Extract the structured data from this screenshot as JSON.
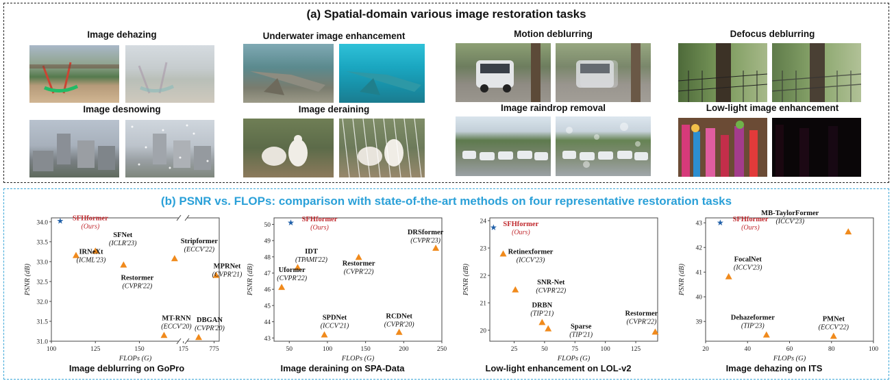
{
  "panel_a": {
    "title": "(a) Spatial-domain various image restoration tasks",
    "tasks": [
      {
        "label": "Image dehazing"
      },
      {
        "label": "Underwater image enhancement"
      },
      {
        "label": "Motion deblurring"
      },
      {
        "label": "Defocus deblurring"
      },
      {
        "label": "Image desnowing"
      },
      {
        "label": "Image deraining"
      },
      {
        "label": "Image raindrop removal"
      },
      {
        "label": "Low-light image enhancement"
      }
    ]
  },
  "panel_b": {
    "title": "(b) PSNR vs. FLOPs: comparison with state-of-the-art methods on four representative restoration tasks"
  },
  "colors": {
    "ours_star": "#1f5fa8",
    "ours_text": "#c0282d",
    "marker": "#f08a1c",
    "panel_b_border": "#3aa6d8"
  },
  "chart_data": [
    {
      "type": "scatter",
      "caption": "Image deblurring on GoPro",
      "xlabel": "FLOPs (G)",
      "ylabel": "PSNR (dB)",
      "broken_x_axis": true,
      "xticks_left": [
        "100",
        "125",
        "150",
        "175"
      ],
      "xticks_right": [
        "775"
      ],
      "yticks": [
        "31.0",
        "31.5",
        "32.0",
        "32.5",
        "33.0",
        "33.5",
        "34.0"
      ],
      "ylim": [
        31.0,
        34.1
      ],
      "points": [
        {
          "name": "SFHformer",
          "venue": "(Ours)",
          "x": 105,
          "y": 34.02,
          "ours": true
        },
        {
          "name": "SFNet",
          "venue": "(ICLR'23)",
          "x": 125,
          "y": 33.27
        },
        {
          "name": "IRNeXt",
          "venue": "(ICML'23)",
          "x": 114,
          "y": 33.16
        },
        {
          "name": "Restormer",
          "venue": "(CVPR'22)",
          "x": 141,
          "y": 32.92
        },
        {
          "name": "Stripformer",
          "venue": "(ECCV'22)",
          "x": 170,
          "y": 33.08
        },
        {
          "name": "MPRNet",
          "venue": "(CVPR'21)",
          "x": 777,
          "y": 32.66
        },
        {
          "name": "MT-RNN",
          "venue": "(ECCV'20)",
          "x": 164,
          "y": 31.15
        },
        {
          "name": "DBGAN",
          "venue": "(CVPR'20)",
          "x": 760,
          "y": 31.1
        }
      ]
    },
    {
      "type": "scatter",
      "caption": "Image deraining on SPA-Data",
      "xlabel": "FLOPs (G)",
      "ylabel": "PSNR (dB)",
      "xticks": [
        "50",
        "100",
        "150",
        "200",
        "250"
      ],
      "yticks": [
        "43",
        "44",
        "45",
        "46",
        "47",
        "48",
        "49",
        "50"
      ],
      "xlim": [
        30,
        250
      ],
      "ylim": [
        42.8,
        50.4
      ],
      "points": [
        {
          "name": "SFHformer",
          "venue": "(Ours)",
          "x": 52,
          "y": 50.1,
          "ours": true
        },
        {
          "name": "DRSformer",
          "venue": "(CVPR'23)",
          "x": 242,
          "y": 48.54
        },
        {
          "name": "IDT",
          "venue": "(TPAMI'22)",
          "x": 61,
          "y": 47.35
        },
        {
          "name": "Restormer",
          "venue": "(CVPR'22)",
          "x": 141,
          "y": 47.98
        },
        {
          "name": "Uformer",
          "venue": "(CVPR'22)",
          "x": 40,
          "y": 46.13
        },
        {
          "name": "SPDNet",
          "venue": "(ICCV'21)",
          "x": 96,
          "y": 43.2
        },
        {
          "name": "RCDNet",
          "venue": "(CVPR'20)",
          "x": 194,
          "y": 43.36
        }
      ]
    },
    {
      "type": "scatter",
      "caption": "Low-light enhancement on LOL-v2",
      "xlabel": "FLOPs (G)",
      "ylabel": "PSNR (dB)",
      "xticks": [
        "25",
        "50",
        "75",
        "100",
        "125"
      ],
      "yticks": [
        "20",
        "21",
        "22",
        "23",
        "24"
      ],
      "xlim": [
        5,
        143
      ],
      "ylim": [
        19.6,
        24.1
      ],
      "points": [
        {
          "name": "SFHformer",
          "venue": "(Ours)",
          "x": 8,
          "y": 23.75,
          "ours": true
        },
        {
          "name": "Retinexformer",
          "venue": "(ICCV'23)",
          "x": 16,
          "y": 22.79
        },
        {
          "name": "SNR-Net",
          "venue": "(CVPR'22)",
          "x": 26,
          "y": 21.48
        },
        {
          "name": "DRBN",
          "venue": "(TIP'21)",
          "x": 48,
          "y": 20.29
        },
        {
          "name": "Sparse",
          "venue": "(TIP'21)",
          "x": 53,
          "y": 20.06
        },
        {
          "name": "Restormer",
          "venue": "(CVPR'22)",
          "x": 141,
          "y": 19.94
        }
      ]
    },
    {
      "type": "scatter",
      "caption": "Image dehazing on ITS",
      "xlabel": "FLOPs (G)",
      "ylabel": "PSNR (dB)",
      "xticks": [
        "20",
        "40",
        "60",
        "80",
        "100"
      ],
      "yticks": [
        "39",
        "40",
        "41",
        "42",
        "43"
      ],
      "xlim": [
        20,
        100
      ],
      "ylim": [
        38.2,
        43.2
      ],
      "points": [
        {
          "name": "SFHformer",
          "venue": "(Ours)",
          "x": 27,
          "y": 43.0,
          "ours": true
        },
        {
          "name": "MB-TaylorFormer",
          "venue": "(ICCV'23)",
          "x": 88,
          "y": 42.64
        },
        {
          "name": "FocalNet",
          "venue": "(ICCV'23)",
          "x": 31,
          "y": 40.82
        },
        {
          "name": "Dehazeformer",
          "venue": "(TIP'23)",
          "x": 49,
          "y": 38.46
        },
        {
          "name": "PMNet",
          "venue": "(ECCV'22)",
          "x": 81,
          "y": 38.41
        }
      ]
    }
  ]
}
